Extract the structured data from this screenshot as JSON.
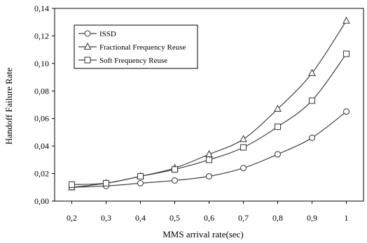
{
  "chart_data": {
    "type": "line",
    "title": "",
    "xlabel": "MMS arrival rate(sec)",
    "ylabel": "Handoff Failure Rate",
    "x": [
      0.2,
      0.3,
      0.4,
      0.5,
      0.6,
      0.7,
      0.8,
      0.9,
      1.0
    ],
    "x_tick_labels": [
      "0,2",
      "0,3",
      "0,4",
      "0,5",
      "0,6",
      "0,7",
      "0,8",
      "0,9",
      "1"
    ],
    "xlim": [
      0.15,
      1.05
    ],
    "ylim": [
      0,
      0.14
    ],
    "y_ticks": [
      0,
      0.02,
      0.04,
      0.06,
      0.08,
      0.1,
      0.12,
      0.14
    ],
    "y_tick_labels": [
      "0,00",
      "0,02",
      "0,04",
      "0,06",
      "0,08",
      "0,10",
      "0,12",
      "0,14"
    ],
    "grid": false,
    "legend_position": "top-left",
    "series": [
      {
        "name": "ISSD",
        "marker": "circle",
        "color": "#404040",
        "values": [
          0.01,
          0.011,
          0.013,
          0.015,
          0.018,
          0.024,
          0.034,
          0.046,
          0.065
        ]
      },
      {
        "name": "Fractional Frequency Reuse",
        "marker": "triangle",
        "color": "#404040",
        "values": [
          0.01,
          0.013,
          0.018,
          0.024,
          0.034,
          0.045,
          0.067,
          0.093,
          0.131
        ]
      },
      {
        "name": "Soft Frequency Reuse",
        "marker": "square",
        "color": "#404040",
        "values": [
          0.012,
          0.013,
          0.018,
          0.023,
          0.03,
          0.039,
          0.054,
          0.073,
          0.107
        ]
      }
    ]
  }
}
